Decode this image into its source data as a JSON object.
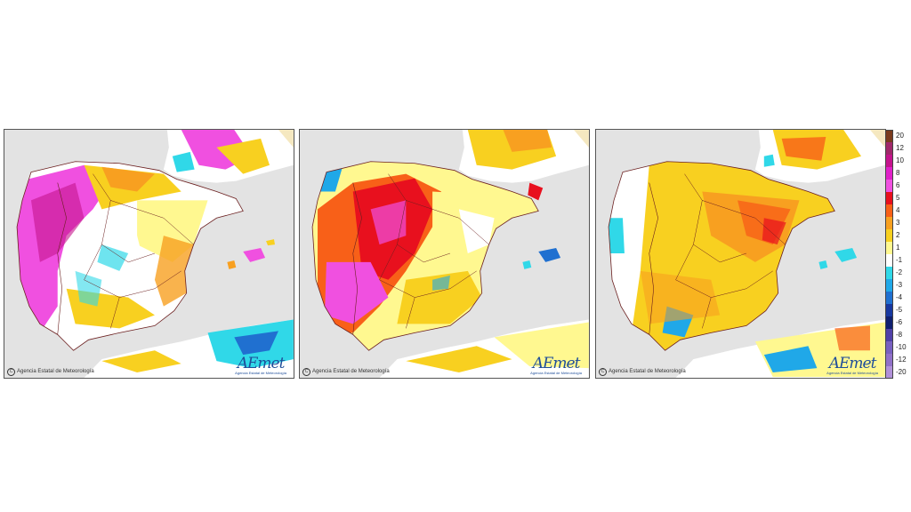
{
  "panels": [
    {
      "credit": "Agencia Estatal de Meteorología",
      "logo": "AEmet",
      "logo_sub": "Agencia Estatal de Meteorología"
    },
    {
      "credit": "Agencia Estatal de Meteorología",
      "logo": "AEmet",
      "logo_sub": "Agencia Estatal de Meteorología"
    },
    {
      "credit": "Agencia Estatal de Meteorología",
      "logo": "AEmet",
      "logo_sub": "Agencia Estatal de Meteorología"
    }
  ],
  "legend": [
    {
      "label": "20",
      "color": "#7a3b1d"
    },
    {
      "label": "12",
      "color": "#a0286a"
    },
    {
      "label": "10",
      "color": "#c4148c"
    },
    {
      "label": "8",
      "color": "#e020c8"
    },
    {
      "label": "6",
      "color": "#f050e0"
    },
    {
      "label": "5",
      "color": "#e8101e"
    },
    {
      "label": "4",
      "color": "#f86018"
    },
    {
      "label": "3",
      "color": "#f8a020"
    },
    {
      "label": "2",
      "color": "#f8d020"
    },
    {
      "label": "1",
      "color": "#fff890"
    },
    {
      "label": "-1",
      "color": "#ffffff"
    },
    {
      "label": "-2",
      "color": "#30d8e8"
    },
    {
      "label": "-3",
      "color": "#20a8e8"
    },
    {
      "label": "-4",
      "color": "#2070d0"
    },
    {
      "label": "-5",
      "color": "#1838a0"
    },
    {
      "label": "-6",
      "color": "#102070"
    },
    {
      "label": "-8",
      "color": "#5040a8"
    },
    {
      "label": "-10",
      "color": "#7860c0"
    },
    {
      "label": "-12",
      "color": "#9070c8"
    },
    {
      "label": "-20",
      "color": "#b090d8"
    }
  ]
}
